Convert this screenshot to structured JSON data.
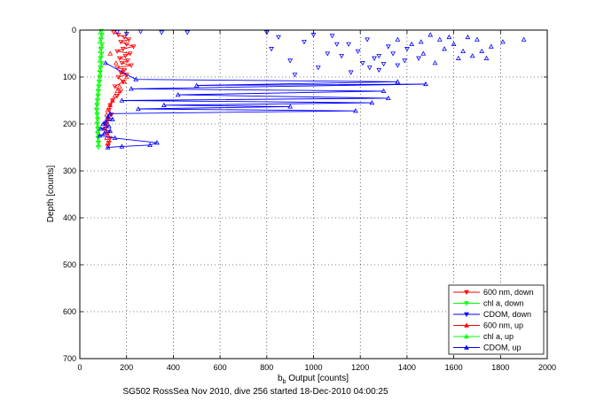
{
  "chart_data": {
    "type": "scatter",
    "title": "",
    "xlabel_main": "b",
    "xlabel_sub": "b",
    "xlabel_rest": " Output [counts]",
    "ylabel": "Depth [counts]",
    "caption": "SG502 RossSea Nov 2010, dive 256 started 18-Dec-2010 04:00:25",
    "xlim": [
      0,
      2000
    ],
    "ylim": [
      0,
      700
    ],
    "y_reversed": true,
    "xticks": [
      0,
      200,
      400,
      600,
      800,
      1000,
      1200,
      1400,
      1600,
      1800,
      2000
    ],
    "yticks": [
      0,
      100,
      200,
      300,
      400,
      500,
      600,
      700
    ],
    "xtick_labels": [
      "0",
      "200",
      "400",
      "600",
      "800",
      "1000",
      "1200",
      "1400",
      "1600",
      "1800",
      "2000"
    ],
    "ytick_labels": [
      "0",
      "100",
      "200",
      "300",
      "400",
      "500",
      "600",
      "700"
    ],
    "grid": true,
    "legend_position": "bottom-right",
    "colors": {
      "red": "#ff0000",
      "green": "#00ff00",
      "blue": "#0000ff"
    },
    "series": [
      {
        "name": "600 nm, down",
        "marker": "triangle-down",
        "color": "#ff0000",
        "line": true,
        "points": [
          [
            145,
            5
          ],
          [
            165,
            10
          ],
          [
            190,
            15
          ],
          [
            210,
            20
          ],
          [
            175,
            25
          ],
          [
            200,
            30
          ],
          [
            230,
            35
          ],
          [
            185,
            40
          ],
          [
            160,
            45
          ],
          [
            215,
            50
          ],
          [
            195,
            55
          ],
          [
            170,
            60
          ],
          [
            205,
            65
          ],
          [
            180,
            70
          ],
          [
            220,
            75
          ],
          [
            160,
            80
          ],
          [
            190,
            85
          ],
          [
            175,
            90
          ],
          [
            200,
            95
          ],
          [
            165,
            100
          ],
          [
            185,
            110
          ],
          [
            150,
            120
          ],
          [
            175,
            130
          ],
          [
            160,
            140
          ],
          [
            140,
            150
          ],
          [
            130,
            160
          ],
          [
            125,
            170
          ],
          [
            135,
            180
          ],
          [
            120,
            190
          ],
          [
            115,
            200
          ],
          [
            110,
            210
          ],
          [
            120,
            220
          ],
          [
            130,
            230
          ],
          [
            125,
            240
          ],
          [
            120,
            248
          ]
        ]
      },
      {
        "name": "chl a, down",
        "marker": "triangle-down",
        "color": "#00ff00",
        "line": true,
        "points": [
          [
            92,
            2
          ],
          [
            95,
            10
          ],
          [
            90,
            20
          ],
          [
            96,
            30
          ],
          [
            91,
            40
          ],
          [
            94,
            50
          ],
          [
            89,
            60
          ],
          [
            93,
            70
          ],
          [
            90,
            80
          ],
          [
            88,
            90
          ],
          [
            86,
            100
          ],
          [
            84,
            110
          ],
          [
            82,
            120
          ],
          [
            80,
            130
          ],
          [
            78,
            140
          ],
          [
            76,
            150
          ],
          [
            74,
            160
          ],
          [
            72,
            170
          ],
          [
            74,
            180
          ],
          [
            76,
            190
          ],
          [
            75,
            200
          ],
          [
            77,
            210
          ],
          [
            76,
            220
          ],
          [
            78,
            230
          ],
          [
            80,
            240
          ],
          [
            79,
            250
          ]
        ]
      },
      {
        "name": "CDOM, down",
        "marker": "triangle-down",
        "color": "#0000ff",
        "line": false,
        "points": [
          [
            850,
            15
          ],
          [
            960,
            25
          ],
          [
            1080,
            12
          ],
          [
            1150,
            30
          ],
          [
            1190,
            45
          ],
          [
            1230,
            20
          ],
          [
            1280,
            55
          ],
          [
            1320,
            35
          ],
          [
            1360,
            75
          ],
          [
            1400,
            40
          ],
          [
            1450,
            60
          ],
          [
            1280,
            85
          ],
          [
            1210,
            70
          ],
          [
            1120,
            55
          ],
          [
            1020,
            80
          ],
          [
            900,
            65
          ],
          [
            820,
            40
          ],
          [
            920,
            95
          ],
          [
            1060,
            50
          ],
          [
            1160,
            90
          ],
          [
            1260,
            60
          ],
          [
            1340,
            50
          ],
          [
            1390,
            65
          ],
          [
            1240,
            80
          ],
          [
            1300,
            72
          ],
          [
            1100,
            30
          ],
          [
            1000,
            10
          ],
          [
            800,
            5
          ],
          [
            460,
            5
          ],
          [
            260,
            3
          ],
          [
            350,
            5
          ],
          [
            200,
            8
          ],
          [
            160,
            4
          ]
        ]
      },
      {
        "name": "600 nm, up",
        "marker": "triangle-up",
        "color": "#ff0000",
        "line": false,
        "points": [
          [
            130,
            50
          ],
          [
            155,
            70
          ],
          [
            180,
            90
          ],
          [
            200,
            100
          ],
          [
            190,
            110
          ],
          [
            170,
            120
          ],
          [
            160,
            130
          ],
          [
            150,
            140
          ],
          [
            140,
            150
          ],
          [
            130,
            160
          ],
          [
            120,
            170
          ],
          [
            115,
            180
          ],
          [
            120,
            190
          ],
          [
            110,
            200
          ],
          [
            105,
            210
          ],
          [
            110,
            220
          ],
          [
            115,
            230
          ],
          [
            120,
            240
          ]
        ]
      },
      {
        "name": "chl a, up",
        "marker": "triangle-up",
        "color": "#00ff00",
        "line": false,
        "points": [
          [
            88,
            5
          ],
          [
            90,
            15
          ],
          [
            86,
            25
          ],
          [
            90,
            35
          ],
          [
            87,
            45
          ],
          [
            89,
            55
          ],
          [
            85,
            65
          ],
          [
            88,
            75
          ],
          [
            84,
            85
          ],
          [
            86,
            95
          ],
          [
            82,
            105
          ],
          [
            80,
            115
          ],
          [
            78,
            125
          ],
          [
            77,
            135
          ],
          [
            75,
            145
          ],
          [
            73,
            155
          ],
          [
            72,
            165
          ],
          [
            74,
            175
          ],
          [
            76,
            185
          ],
          [
            74,
            195
          ],
          [
            77,
            205
          ],
          [
            76,
            215
          ],
          [
            78,
            225
          ],
          [
            79,
            235
          ],
          [
            80,
            245
          ]
        ]
      },
      {
        "name": "CDOM, up",
        "marker": "triangle-up",
        "color": "#0000ff",
        "line": true,
        "points": [
          [
            110,
            70
          ],
          [
            240,
            105
          ],
          [
            1360,
            110
          ],
          [
            500,
            118
          ],
          [
            1480,
            115
          ],
          [
            220,
            125
          ],
          [
            1300,
            130
          ],
          [
            420,
            138
          ],
          [
            1320,
            145
          ],
          [
            180,
            150
          ],
          [
            1250,
            155
          ],
          [
            360,
            160
          ],
          [
            900,
            163
          ],
          [
            250,
            168
          ],
          [
            1180,
            172
          ],
          [
            130,
            178
          ],
          [
            120,
            185
          ],
          [
            140,
            190
          ],
          [
            110,
            195
          ],
          [
            100,
            200
          ],
          [
            125,
            205
          ],
          [
            90,
            210
          ],
          [
            130,
            215
          ],
          [
            105,
            220
          ],
          [
            85,
            225
          ],
          [
            150,
            230
          ],
          [
            330,
            240
          ],
          [
            300,
            245
          ],
          [
            180,
            248
          ],
          [
            120,
            250
          ]
        ]
      },
      {
        "name": "CDOM, up extra",
        "marker": "triangle-up",
        "color": "#0000ff",
        "line": false,
        "legend": false,
        "points": [
          [
            1500,
            10
          ],
          [
            1540,
            20
          ],
          [
            1600,
            30
          ],
          [
            1640,
            45
          ],
          [
            1700,
            20
          ],
          [
            1760,
            35
          ],
          [
            1810,
            25
          ],
          [
            1900,
            20
          ],
          [
            1470,
            50
          ],
          [
            1620,
            60
          ],
          [
            1560,
            40
          ],
          [
            1680,
            55
          ],
          [
            1740,
            60
          ],
          [
            1580,
            15
          ],
          [
            1420,
            30
          ],
          [
            1660,
            15
          ],
          [
            1520,
            70
          ],
          [
            1720,
            45
          ],
          [
            1360,
            20
          ],
          [
            1460,
            25
          ]
        ]
      }
    ],
    "legend": [
      "600 nm, down",
      "chl a, down",
      "CDOM, down",
      "600 nm, up",
      "chl a, up",
      "CDOM, up"
    ]
  }
}
